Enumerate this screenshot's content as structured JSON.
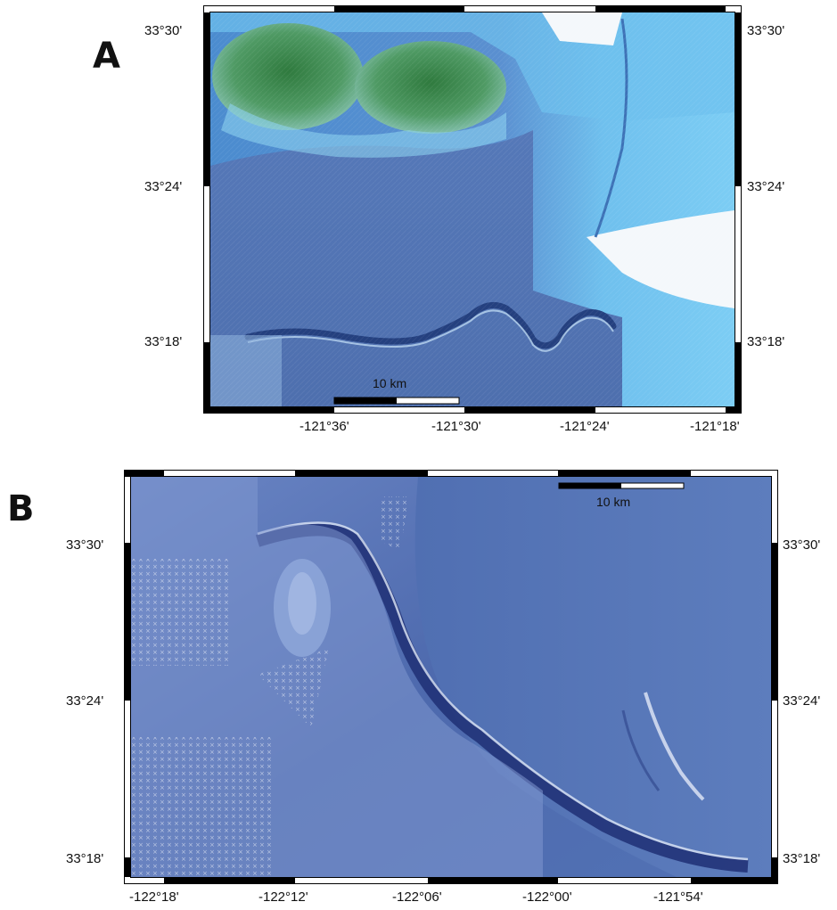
{
  "panels": [
    {
      "label": "A",
      "scale_bar_label": "10 km",
      "left_lat_ticks": [
        "33°30'",
        "33°24'",
        "33°18'"
      ],
      "right_lat_ticks": [
        "33°30'",
        "33°24'",
        "33°18'"
      ],
      "lon_ticks": [
        "-121°36'",
        "-121°30'",
        "-121°24'",
        "-121°18'"
      ]
    },
    {
      "label": "B",
      "scale_bar_label": "10 km",
      "left_lat_ticks": [
        "33°30'",
        "33°24'",
        "33°18'"
      ],
      "right_lat_ticks": [
        "33°30'",
        "33°24'",
        "33°18'"
      ],
      "lon_ticks": [
        "-122°18'",
        "-122°12'",
        "-122°06'",
        "-122°00'",
        "-121°54'"
      ]
    }
  ],
  "colors": {
    "ocean_light": "#58b6ec",
    "ocean_mid": "#4a86c8",
    "seafloor_blue": "#5479b3",
    "island_green": "#3f8b54",
    "deep_navy": "#243f88",
    "frame": "#000000"
  }
}
